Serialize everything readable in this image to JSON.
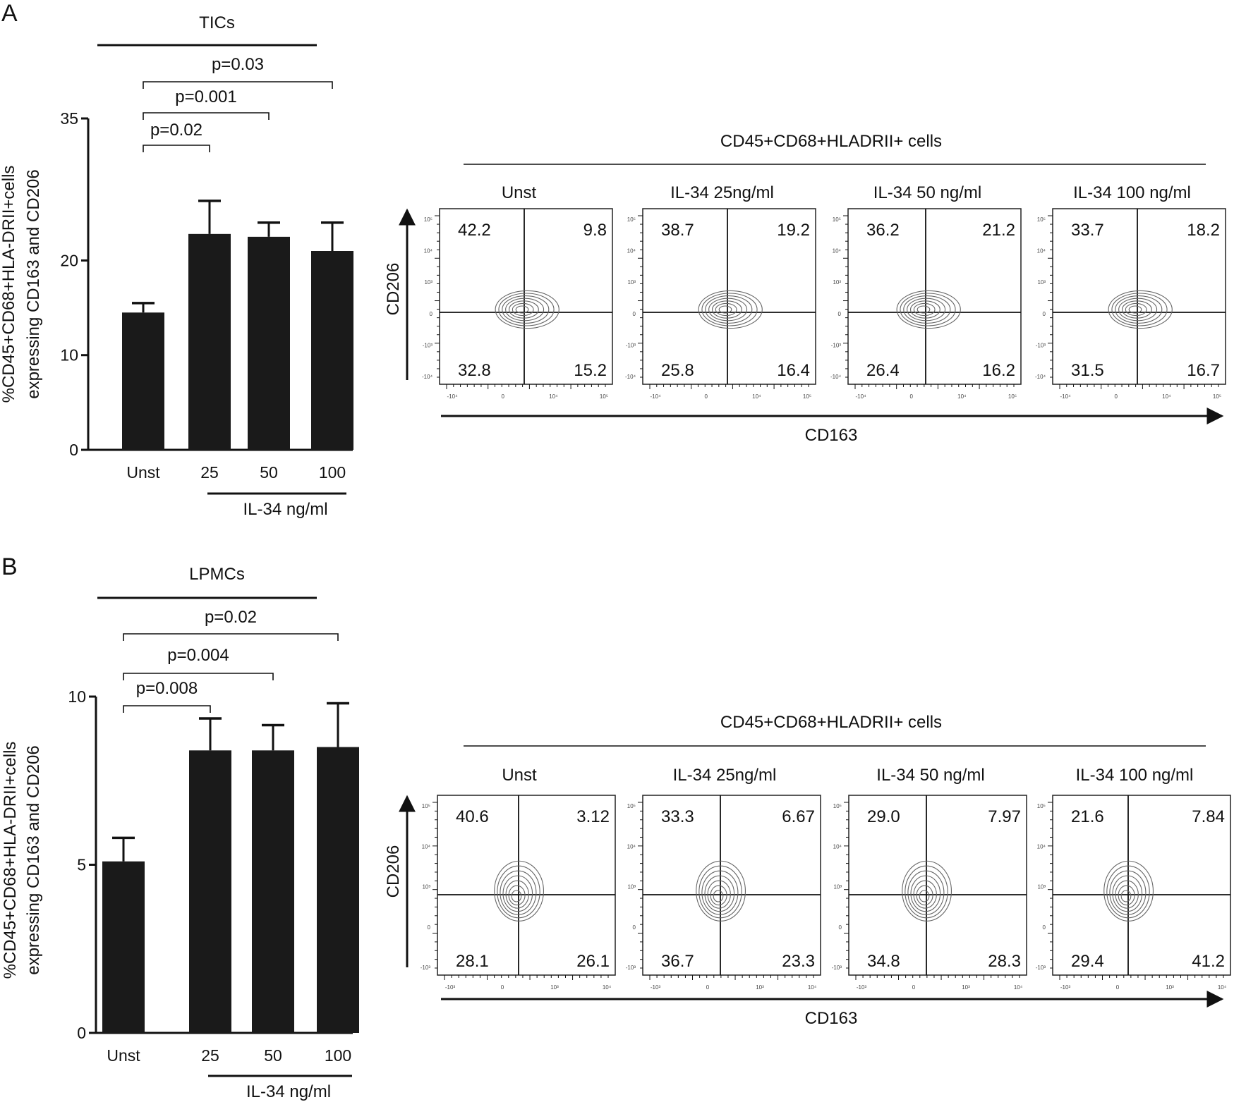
{
  "panels": [
    {
      "letter": "A",
      "group": "TICs",
      "flow_title": "CD45+CD68+HLADRII+ cells",
      "ytitle": [
        "%CD45+CD68+HLA-DRII+cells",
        "expressing CD163 and CD206"
      ],
      "xgroup_label": "IL-34 ng/ml",
      "flow_x_label": "CD163",
      "flow_y_label": "CD206",
      "plots": [
        {
          "title": "Unst",
          "quadrants": [
            "42.2",
            "9.8",
            "32.8",
            "15.2"
          ]
        },
        {
          "title": "IL-34 25ng/ml",
          "quadrants": [
            "38.7",
            "19.2",
            "25.8",
            "16.4"
          ]
        },
        {
          "title": "IL-34 50 ng/ml",
          "quadrants": [
            "36.2",
            "21.2",
            "26.4",
            "16.2"
          ]
        },
        {
          "title": "IL-34 100 ng/ml",
          "quadrants": [
            "33.7",
            "18.2",
            "31.5",
            "16.7"
          ]
        }
      ]
    },
    {
      "letter": "B",
      "group": "LPMCs",
      "flow_title": "CD45+CD68+HLADRII+ cells",
      "ytitle": [
        "%CD45+CD68+HLA-DRII+cells",
        "expressing CD163 and CD206"
      ],
      "xgroup_label": "IL-34 ng/ml",
      "flow_x_label": "CD163",
      "flow_y_label": "CD206",
      "plots": [
        {
          "title": "Unst",
          "quadrants": [
            "40.6",
            "3.12",
            "28.1",
            "26.1"
          ]
        },
        {
          "title": "IL-34 25ng/ml",
          "quadrants": [
            "33.3",
            "6.67",
            "36.7",
            "23.3"
          ]
        },
        {
          "title": "IL-34 50 ng/ml",
          "quadrants": [
            "29.0",
            "7.97",
            "34.8",
            "28.3"
          ]
        },
        {
          "title": "IL-34 100 ng/ml",
          "quadrants": [
            "21.6",
            "7.84",
            "29.4",
            "41.2"
          ]
        }
      ]
    }
  ],
  "chart_data": [
    {
      "type": "bar",
      "panel": "A",
      "categories": [
        "Unst",
        "25",
        "50",
        "100"
      ],
      "values": [
        14.5,
        22.8,
        22.5,
        21.0
      ],
      "errors": [
        1.0,
        3.5,
        1.5,
        3.0
      ],
      "ylim": [
        0,
        35
      ],
      "yticks": [
        0,
        10,
        20,
        35
      ],
      "error_bar_side": "upper",
      "comparisons": [
        {
          "from": "Unst",
          "to": "25",
          "label": "p=0.02"
        },
        {
          "from": "Unst",
          "to": "50",
          "label": "p=0.001"
        },
        {
          "from": "Unst",
          "to": "100",
          "label": "p=0.03"
        }
      ]
    },
    {
      "type": "bar",
      "panel": "B",
      "categories": [
        "Unst",
        "25",
        "50",
        "100"
      ],
      "values": [
        5.1,
        8.4,
        8.4,
        8.5
      ],
      "errors": [
        0.7,
        0.95,
        0.75,
        1.3
      ],
      "ylim": [
        0,
        10
      ],
      "yticks": [
        0,
        5,
        10
      ],
      "error_bar_side": "upper",
      "comparisons": [
        {
          "from": "Unst",
          "to": "25",
          "label": "p=0.008"
        },
        {
          "from": "Unst",
          "to": "50",
          "label": "p=0.004"
        },
        {
          "from": "Unst",
          "to": "100",
          "label": "p=0.02"
        }
      ]
    }
  ]
}
